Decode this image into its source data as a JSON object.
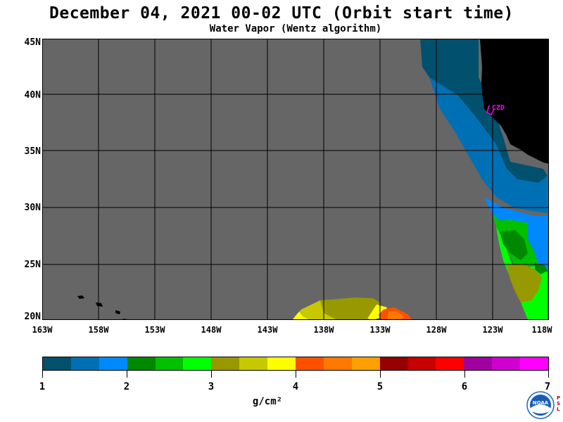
{
  "title": "December 04, 2021  00-02 UTC  (Orbit start time)",
  "subtitle": "Water Vapor (Wentz algorithm)",
  "lat_labels": [
    "45N",
    "40N",
    "35N",
    "30N",
    "25N",
    "20N"
  ],
  "lon_labels": [
    "163W",
    "158W",
    "153W",
    "148W",
    "143W",
    "138W",
    "133W",
    "128W",
    "123W",
    "118W"
  ],
  "station_label": "CZD",
  "colorbar": {
    "tick_labels": [
      "1",
      "2",
      "3",
      "4",
      "5",
      "6",
      "7"
    ],
    "unit": "g/cm²",
    "colors": [
      "#00506e",
      "#0070b4",
      "#0088ff",
      "#008800",
      "#00c000",
      "#00ff00",
      "#989800",
      "#c8c800",
      "#ffff00",
      "#ff5000",
      "#ff7800",
      "#ffa000",
      "#960000",
      "#c80000",
      "#ff0000",
      "#a000a0",
      "#d000d0",
      "#ff00ff"
    ]
  },
  "colors": {
    "no_data": "#666666",
    "land": "#000000",
    "grid": "#000000",
    "station": "#ff00ff"
  },
  "logo": {
    "text": "NOAA",
    "side_text": [
      "P",
      "S",
      "L"
    ]
  }
}
